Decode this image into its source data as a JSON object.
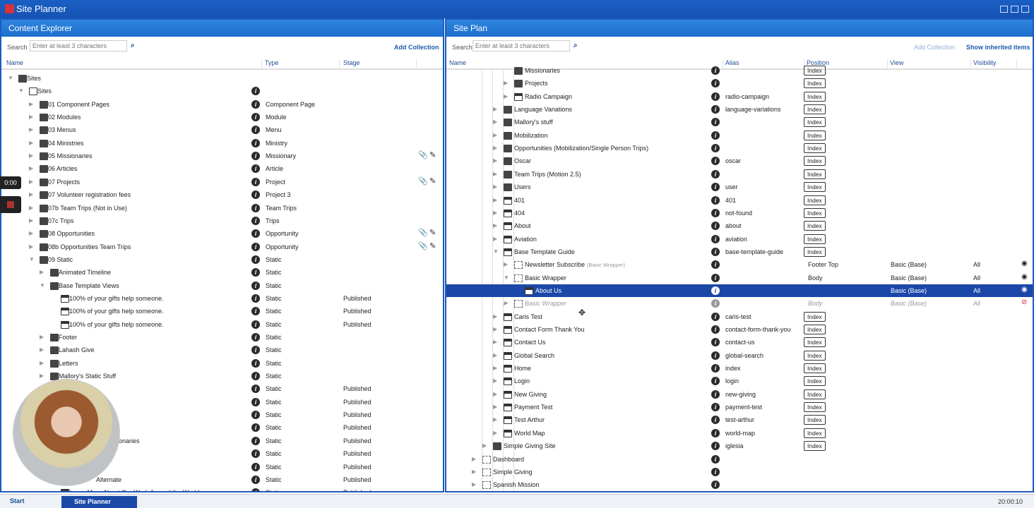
{
  "app": {
    "title": "Site Planner"
  },
  "left": {
    "title": "Content Explorer",
    "search_label": "Search",
    "search_placeholder": "Enter at least 3 characters",
    "add_collection": "Add Collection",
    "columns": [
      "Name",
      "Type",
      "Stage"
    ],
    "rows": [
      {
        "lvl": 0,
        "exp": "open",
        "icon": "server",
        "name": "Sites",
        "type": "",
        "stage": "",
        "info": false
      },
      {
        "lvl": 1,
        "exp": "open",
        "icon": "monitor",
        "name": "Sites",
        "type": "",
        "stage": ""
      },
      {
        "lvl": 2,
        "exp": "closed",
        "icon": "folder",
        "name": "01 Component Pages",
        "type": "Component Page",
        "stage": ""
      },
      {
        "lvl": 2,
        "exp": "closed",
        "icon": "folder",
        "name": "02 Modules",
        "type": "Module",
        "stage": ""
      },
      {
        "lvl": 2,
        "exp": "closed",
        "icon": "folder",
        "name": "03 Menus",
        "type": "Menu",
        "stage": ""
      },
      {
        "lvl": 2,
        "exp": "closed",
        "icon": "folder",
        "name": "04 Ministries",
        "type": "Ministry",
        "stage": ""
      },
      {
        "lvl": 2,
        "exp": "closed",
        "icon": "folder",
        "name": "05 Missionaries",
        "type": "Missionary",
        "stage": "",
        "actions": true
      },
      {
        "lvl": 2,
        "exp": "closed",
        "icon": "folder",
        "name": "06 Articles",
        "type": "Article",
        "stage": ""
      },
      {
        "lvl": 2,
        "exp": "closed",
        "icon": "folder",
        "name": "07 Projects",
        "type": "Project",
        "stage": "",
        "actions": true
      },
      {
        "lvl": 2,
        "exp": "closed",
        "icon": "folder",
        "name": "07 Volunteer registration fees",
        "type": "Project 3",
        "stage": ""
      },
      {
        "lvl": 2,
        "exp": "closed",
        "icon": "folder",
        "name": "07b Team Trips (Not in Use)",
        "type": "Team Trips",
        "stage": ""
      },
      {
        "lvl": 2,
        "exp": "closed",
        "icon": "folder",
        "name": "07c Trips",
        "type": "Trips",
        "stage": ""
      },
      {
        "lvl": 2,
        "exp": "closed",
        "icon": "folder",
        "name": "08 Opportunities",
        "type": "Opportunity",
        "stage": "",
        "actions": true
      },
      {
        "lvl": 2,
        "exp": "closed",
        "icon": "folder",
        "name": "08b Opportunities Team Trips",
        "type": "Opportunity",
        "stage": "",
        "actions": true
      },
      {
        "lvl": 2,
        "exp": "open",
        "icon": "folder",
        "name": "09 Static",
        "type": "Static",
        "stage": ""
      },
      {
        "lvl": 3,
        "exp": "closed",
        "icon": "folder",
        "name": "Animated Timeline",
        "type": "Static",
        "stage": ""
      },
      {
        "lvl": 3,
        "exp": "open",
        "icon": "folder",
        "name": "Base Template Views",
        "type": "Static",
        "stage": ""
      },
      {
        "lvl": 4,
        "exp": "",
        "icon": "grid",
        "name": "100% of your gifts help someone.",
        "type": "Static",
        "stage": "Published"
      },
      {
        "lvl": 4,
        "exp": "",
        "icon": "grid",
        "name": "100% of your gifts help someone.",
        "type": "Static",
        "stage": "Published"
      },
      {
        "lvl": 4,
        "exp": "",
        "icon": "grid",
        "name": "100% of your gifts help someone.",
        "type": "Static",
        "stage": "Published"
      },
      {
        "lvl": 3,
        "exp": "closed",
        "icon": "folder",
        "name": "Footer",
        "type": "Static",
        "stage": ""
      },
      {
        "lvl": 3,
        "exp": "closed",
        "icon": "folder",
        "name": "Lahash Give",
        "type": "Static",
        "stage": ""
      },
      {
        "lvl": 3,
        "exp": "closed",
        "icon": "folder",
        "name": "Letters",
        "type": "Static",
        "stage": ""
      },
      {
        "lvl": 3,
        "exp": "closed",
        "icon": "folder",
        "name": "Mallory's Static Stuff",
        "type": "Static",
        "stage": ""
      },
      {
        "lvl": 4,
        "exp": "",
        "icon": "",
        "name": "",
        "type": "Static",
        "stage": "Published"
      },
      {
        "lvl": 4,
        "exp": "",
        "icon": "",
        "name": "",
        "type": "Static",
        "stage": "Published"
      },
      {
        "lvl": 4,
        "exp": "",
        "icon": "",
        "name": "",
        "type": "Static",
        "stage": "Published"
      },
      {
        "lvl": 4,
        "exp": "",
        "icon": "",
        "name": "",
        "type": "Static",
        "stage": "Published"
      },
      {
        "lvl": 4,
        "exp": "",
        "icon": "",
        "name": "onaries",
        "type": "Static",
        "stage": "Published",
        "offset": 70
      },
      {
        "lvl": 4,
        "exp": "",
        "icon": "",
        "name": "",
        "type": "Static",
        "stage": "Published"
      },
      {
        "lvl": 4,
        "exp": "",
        "icon": "",
        "name": "",
        "type": "Static",
        "stage": "Published"
      },
      {
        "lvl": 4,
        "exp": "",
        "icon": "",
        "name": "Alternate",
        "type": "Static",
        "stage": "Published",
        "offset": 38
      },
      {
        "lvl": 4,
        "exp": "",
        "icon": "grid",
        "name": "Learn More About Our Work Around the World",
        "type": "Static",
        "stage": "Published"
      }
    ]
  },
  "right": {
    "title": "Site Plan",
    "search_label": "Search",
    "search_placeholder": "Enter at least 3 characters",
    "add_collection": "Add Collection",
    "show_inherited": "Show inherited items",
    "columns": [
      "Name",
      "Alias",
      "Position",
      "View",
      "Visibility"
    ],
    "rows": [
      {
        "lvl": 3,
        "exp": "",
        "icon": "folder",
        "name": "Missionaries",
        "alias": "",
        "position": "Index"
      },
      {
        "lvl": 3,
        "exp": "closed",
        "icon": "folder",
        "name": "Projects",
        "alias": "",
        "position": "Index"
      },
      {
        "lvl": 3,
        "exp": "closed",
        "icon": "page",
        "name": "Radio Campaign",
        "alias": "radio-campaign",
        "position": "Index"
      },
      {
        "lvl": 2,
        "exp": "closed",
        "icon": "folder",
        "name": "Language Variations",
        "alias": "language-variations",
        "position": "Index"
      },
      {
        "lvl": 2,
        "exp": "closed",
        "icon": "folder",
        "name": "Mallory's stuff",
        "alias": "",
        "position": "Index"
      },
      {
        "lvl": 2,
        "exp": "closed",
        "icon": "folder",
        "name": "Mobilization",
        "alias": "",
        "position": "Index"
      },
      {
        "lvl": 2,
        "exp": "closed",
        "icon": "folder",
        "name": "Opportunities (Mobilization/Single Person Trips)",
        "alias": "",
        "position": "Index"
      },
      {
        "lvl": 2,
        "exp": "closed",
        "icon": "folder",
        "name": "Oscar",
        "alias": "oscar",
        "position": "Index"
      },
      {
        "lvl": 2,
        "exp": "closed",
        "icon": "folder",
        "name": "Team Trips (Motion 2.5)",
        "alias": "",
        "position": "Index"
      },
      {
        "lvl": 2,
        "exp": "closed",
        "icon": "folder",
        "name": "Users",
        "alias": "user",
        "position": "Index"
      },
      {
        "lvl": 2,
        "exp": "closed",
        "icon": "page",
        "name": "401",
        "alias": "401",
        "position": "Index"
      },
      {
        "lvl": 2,
        "exp": "closed",
        "icon": "page",
        "name": "404",
        "alias": "not-found",
        "position": "Index"
      },
      {
        "lvl": 2,
        "exp": "closed",
        "icon": "page",
        "name": "About",
        "alias": "about",
        "position": "Index"
      },
      {
        "lvl": 2,
        "exp": "closed",
        "icon": "page",
        "name": "Aviation",
        "alias": "aviation",
        "position": "Index"
      },
      {
        "lvl": 2,
        "exp": "open",
        "icon": "page",
        "name": "Base Template Guide",
        "alias": "base-template-guide",
        "position": "Index"
      },
      {
        "lvl": 3,
        "exp": "closed",
        "icon": "wrap",
        "name": "Newsletter Subscribe",
        "sub": "(Basic Wrapper)",
        "alias": "",
        "position": "Footer Top",
        "view": "Basic (Base)",
        "vis": "All",
        "eye": "visible"
      },
      {
        "lvl": 3,
        "exp": "open",
        "icon": "wrap",
        "name": "Basic Wrapper",
        "alias": "",
        "position": "Body",
        "view": "Basic (Base)",
        "vis": "All",
        "eye": "visible"
      },
      {
        "lvl": 4,
        "exp": "",
        "icon": "grid",
        "name": "About Us",
        "alias": "",
        "position": "",
        "view": "Basic (Base)",
        "vis": "All",
        "eye": "visible",
        "selected": true
      },
      {
        "lvl": 3,
        "exp": "closed",
        "icon": "wrap",
        "name": "Basic Wrapper",
        "alias": "",
        "position": "Body",
        "view": "Basic (Base)",
        "vis": "All",
        "eye": "hidden",
        "inherited": true
      },
      {
        "lvl": 2,
        "exp": "closed",
        "icon": "page",
        "name": "Caris Test",
        "alias": "caris-test",
        "position": "Index"
      },
      {
        "lvl": 2,
        "exp": "closed",
        "icon": "page",
        "name": "Contact Form Thank You",
        "alias": "contact-form-thank-you",
        "position": "Index"
      },
      {
        "lvl": 2,
        "exp": "closed",
        "icon": "page",
        "name": "Contact Us",
        "alias": "contact-us",
        "position": "Index"
      },
      {
        "lvl": 2,
        "exp": "closed",
        "icon": "page",
        "name": "Global Search",
        "alias": "global-search",
        "position": "Index"
      },
      {
        "lvl": 2,
        "exp": "closed",
        "icon": "page",
        "name": "Home",
        "alias": "index",
        "position": "Index"
      },
      {
        "lvl": 2,
        "exp": "closed",
        "icon": "page",
        "name": "Login",
        "alias": "login",
        "position": "Index"
      },
      {
        "lvl": 2,
        "exp": "closed",
        "icon": "page",
        "name": "New Giving",
        "alias": "new-giving",
        "position": "Index"
      },
      {
        "lvl": 2,
        "exp": "closed",
        "icon": "page",
        "name": "Payment Test",
        "alias": "payment-test",
        "position": "Index"
      },
      {
        "lvl": 2,
        "exp": "closed",
        "icon": "page",
        "name": "Test Arthur",
        "alias": "test-arthur",
        "position": "Index"
      },
      {
        "lvl": 2,
        "exp": "closed",
        "icon": "page",
        "name": "World Map",
        "alias": "world-map",
        "position": "Index"
      },
      {
        "lvl": 1,
        "exp": "closed",
        "icon": "folder",
        "name": "Simple Giving Site",
        "alias": "iglesia",
        "position": "Index"
      },
      {
        "lvl": 0,
        "exp": "closed",
        "icon": "sitemap",
        "name": "Dashboard",
        "alias": "",
        "position": ""
      },
      {
        "lvl": 0,
        "exp": "closed",
        "icon": "sitemap",
        "name": "Simple Giving",
        "alias": "",
        "position": ""
      },
      {
        "lvl": 0,
        "exp": "closed",
        "icon": "sitemap",
        "name": "Spanish Mission",
        "alias": "",
        "position": ""
      }
    ]
  },
  "recording": {
    "time": "0:00"
  },
  "taskbar": {
    "start": "Start",
    "task": "Site Planner",
    "clock": "20:00:10"
  }
}
